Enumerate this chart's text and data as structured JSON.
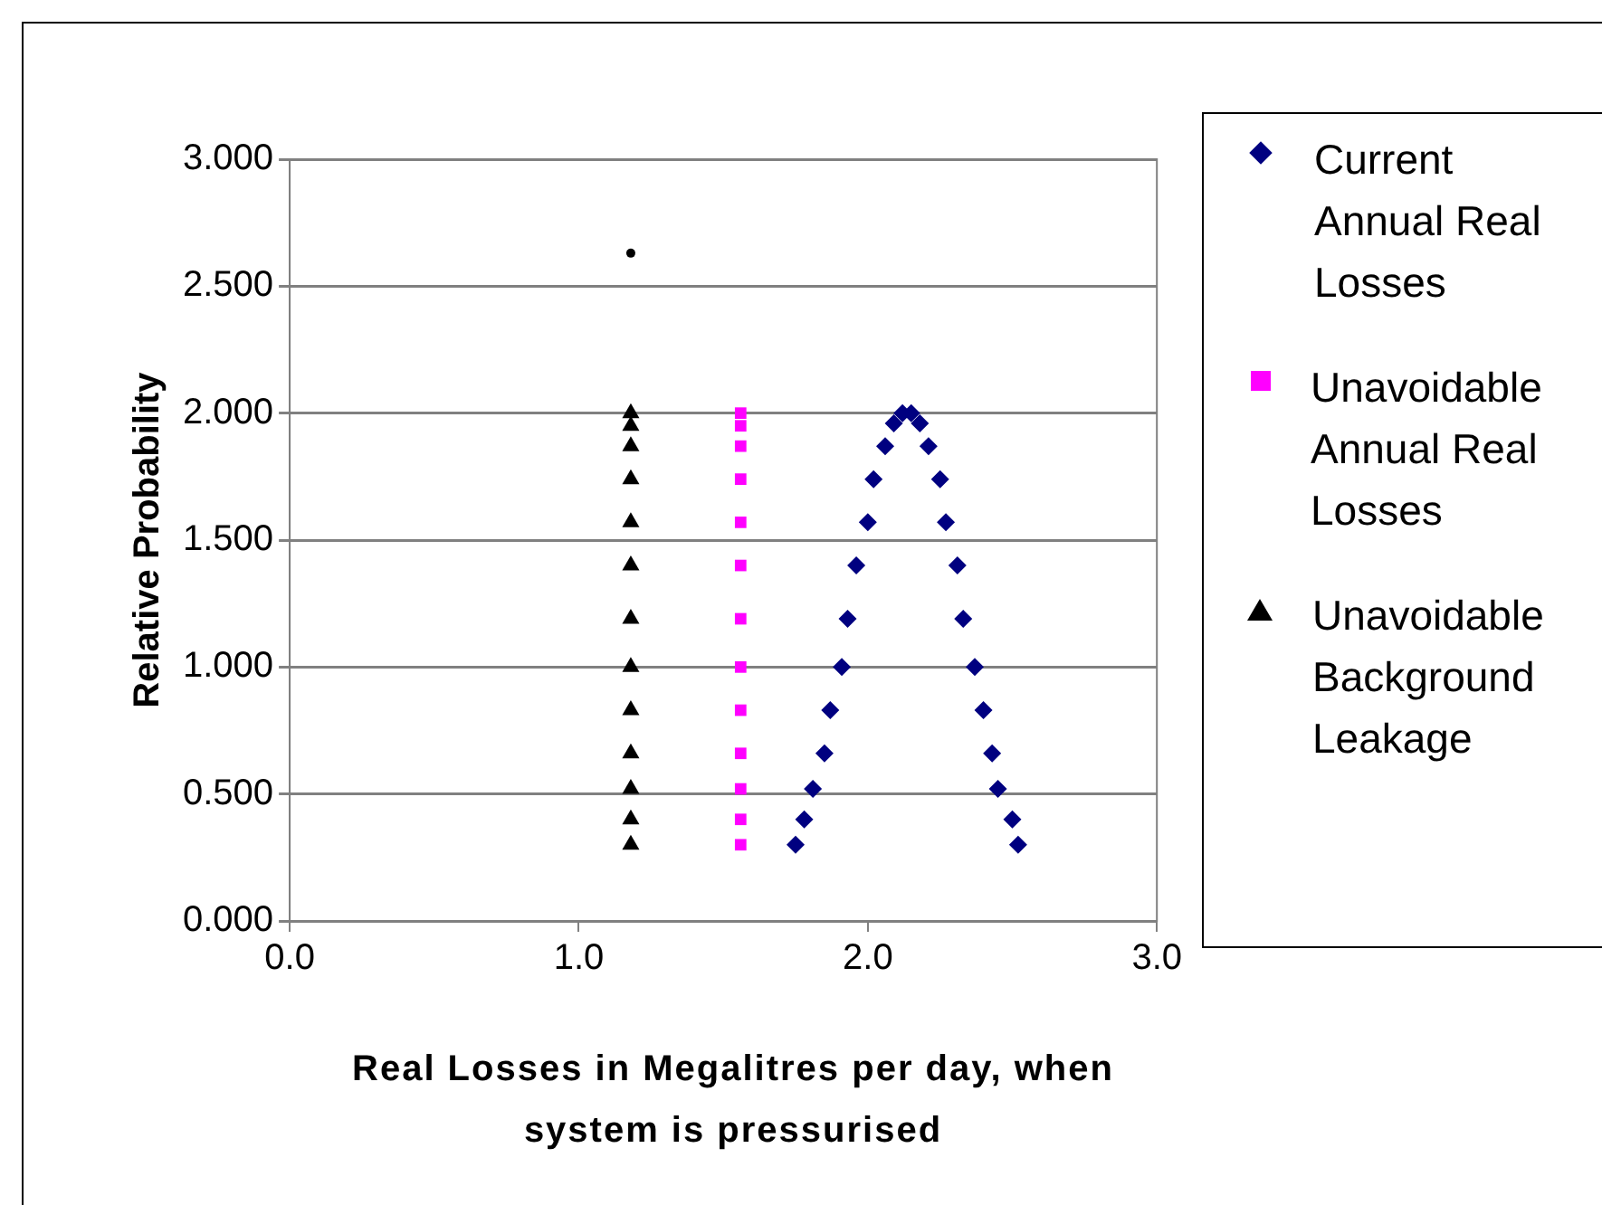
{
  "chart_data": {
    "type": "scatter",
    "xlabel": "Real Losses in Megalitres per day, when system is pressurised",
    "ylabel": "Relative Probability",
    "xlim": [
      0,
      3
    ],
    "xticks": [
      {
        "value": 0,
        "label": "0.0"
      },
      {
        "value": 1,
        "label": "1.0"
      },
      {
        "value": 2,
        "label": "2.0"
      },
      {
        "value": 3,
        "label": "3.0"
      }
    ],
    "ylim": [
      0,
      3
    ],
    "yticks": [
      {
        "value": 0,
        "label": "0.000"
      },
      {
        "value": 0.5,
        "label": "0.500"
      },
      {
        "value": 1,
        "label": "1.000"
      },
      {
        "value": 1.5,
        "label": "1.500"
      },
      {
        "value": 2,
        "label": "2.000"
      },
      {
        "value": 2.5,
        "label": "2.500"
      },
      {
        "value": 3,
        "label": "3.000"
      }
    ],
    "grid": "y",
    "legend": "right",
    "series": [
      {
        "name": "Current Annual Real Losses",
        "color": "#000080",
        "marker": "diamond",
        "x": [
          1.75,
          1.78,
          1.81,
          1.85,
          1.87,
          1.91,
          1.93,
          1.96,
          2.0,
          2.02,
          2.06,
          2.09,
          2.12,
          2.15,
          2.18,
          2.21,
          2.25,
          2.27,
          2.31,
          2.33,
          2.37,
          2.4,
          2.43,
          2.45,
          2.5,
          2.52
        ],
        "values": [
          0.3,
          0.4,
          0.52,
          0.66,
          0.83,
          1.0,
          1.19,
          1.4,
          1.57,
          1.74,
          1.87,
          1.96,
          2.0,
          2.0,
          1.96,
          1.87,
          1.74,
          1.57,
          1.4,
          1.19,
          1.0,
          0.83,
          0.66,
          0.52,
          0.4,
          0.3
        ]
      },
      {
        "name": "Unavoidable Annual Real Losses",
        "color": "#ff00ff",
        "marker": "square",
        "x": [
          1.56,
          1.56,
          1.56,
          1.56,
          1.56,
          1.56,
          1.56,
          1.56,
          1.56,
          1.56,
          1.56,
          1.56,
          1.56
        ],
        "values": [
          0.3,
          0.4,
          0.52,
          0.66,
          0.83,
          1.0,
          1.19,
          1.4,
          1.57,
          1.74,
          1.87,
          1.95,
          2.0
        ]
      },
      {
        "name": "Unavoidable Background Leakage",
        "color": "#000000",
        "marker": "triangle",
        "x": [
          1.18,
          1.18,
          1.18,
          1.18,
          1.18,
          1.18,
          1.18,
          1.18,
          1.18,
          1.18,
          1.18,
          1.18,
          1.18
        ],
        "values": [
          0.3,
          0.4,
          0.52,
          0.66,
          0.83,
          1.0,
          1.19,
          1.4,
          1.57,
          1.74,
          1.87,
          1.95,
          2.0
        ]
      },
      {
        "color": "#000000",
        "marker": "circle",
        "x": [
          1.18
        ],
        "values": [
          2.63
        ]
      }
    ]
  }
}
